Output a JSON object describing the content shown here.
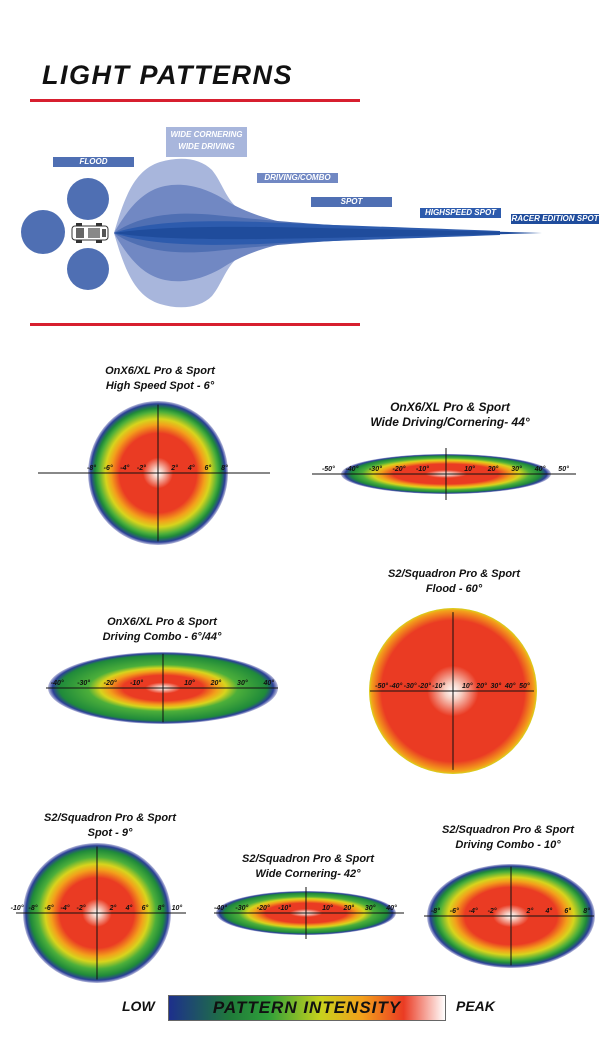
{
  "title": "LIGHT PATTERNS",
  "beam_types": {
    "flood": "FLOOD",
    "wide_line1": "WIDE CORNERING",
    "wide_line2": "WIDE DRIVING",
    "driving_combo": "DRIVING/COMBO",
    "spot": "SPOT",
    "highspeed_spot": "HIGHSPEED SPOT",
    "racer_spot": "RACER EDITION SPOT"
  },
  "colors": {
    "accent_red": "#d71f2f",
    "dark_blue": "#1f4c9c",
    "mid_blue": "#4f6fb3",
    "light_blue": "#a8b6dc",
    "green": "#1f8a3a",
    "red": "#ea3b23",
    "yellow": "#d8d41d"
  },
  "patterns": [
    {
      "line1": "OnX6/XL Pro & Sport",
      "line2": "High Speed Spot - 6°",
      "ticks": [
        "-8°",
        "-6°",
        "-4°",
        "-2°",
        "2°",
        "4°",
        "6°",
        "8°"
      ]
    },
    {
      "line1": "OnX6/XL Pro & Sport",
      "line2": "Wide Driving/Cornering- 44°",
      "ticks": [
        "-50°",
        "-40°",
        "-30°",
        "-20°",
        "-10°",
        "10°",
        "20°",
        "30°",
        "40°",
        "50°"
      ]
    },
    {
      "line1": "OnX6/XL Pro & Sport",
      "line2": "Driving Combo - 6°/44°",
      "ticks": [
        "-40°",
        "-30°",
        "-20°",
        "-10°",
        "10°",
        "20°",
        "30°",
        "40°"
      ]
    },
    {
      "line1": "S2/Squadron Pro & Sport",
      "line2": "Flood - 60°",
      "ticks": [
        "-50°",
        "-40°",
        "-30°",
        "-20°",
        "-10°",
        "10°",
        "20°",
        "30°",
        "40°",
        "50°"
      ]
    },
    {
      "line1": "S2/Squadron Pro & Sport",
      "line2": "Spot - 9°",
      "ticks": [
        "-10°",
        "-8°",
        "-6°",
        "-4°",
        "-2°",
        "2°",
        "4°",
        "6°",
        "8°",
        "10°"
      ]
    },
    {
      "line1": "S2/Squadron Pro & Sport",
      "line2": "Wide Cornering- 42°",
      "ticks": [
        "-40°",
        "-30°",
        "-20°",
        "-10°",
        "10°",
        "20°",
        "30°",
        "40°"
      ]
    },
    {
      "line1": "S2/Squadron Pro & Sport",
      "line2": "Driving Combo - 10°",
      "ticks": [
        "-8°",
        "-6°",
        "-4°",
        "-2°",
        "2°",
        "4°",
        "6°",
        "8°"
      ]
    }
  ],
  "legend": {
    "low": "LOW",
    "label": "PATTERN INTENSITY",
    "peak": "PEAK"
  }
}
